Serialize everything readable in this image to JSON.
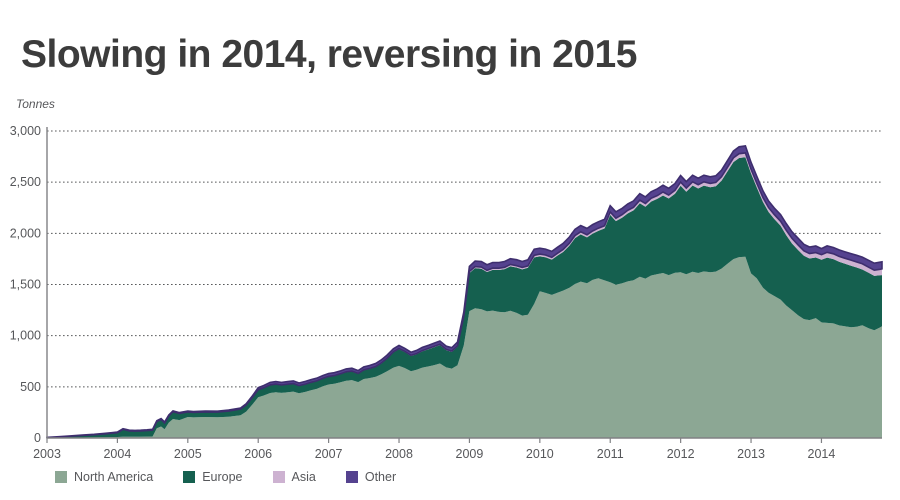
{
  "title": "Slowing in 2014, reversing in 2015",
  "chart_data": {
    "type": "area",
    "stacked": true,
    "title": "Slowing in 2014, reversing in 2015",
    "ylabel": "Tonnes",
    "xlabel": "",
    "ylim": [
      0,
      3000
    ],
    "xlim": [
      2003,
      2014.86
    ],
    "grid": "dotted horizontal",
    "legend_position": "bottom-left",
    "axis_color": "#808184",
    "grid_color": "#58595b",
    "text_color": "#56575a",
    "y_ticks": [
      {
        "label": "0",
        "value": 0
      },
      {
        "label": "500",
        "value": 500
      },
      {
        "label": "1,000",
        "value": 1000
      },
      {
        "label": "1,500",
        "value": 1500
      },
      {
        "label": "2,000",
        "value": 2000
      },
      {
        "label": "2,500",
        "value": 2500
      },
      {
        "label": "3,000",
        "value": 3000
      }
    ],
    "x_ticks": [
      {
        "label": "2003",
        "value": 2003
      },
      {
        "label": "2004",
        "value": 2004
      },
      {
        "label": "2005",
        "value": 2005
      },
      {
        "label": "2006",
        "value": 2006
      },
      {
        "label": "2007",
        "value": 2007
      },
      {
        "label": "2008",
        "value": 2008
      },
      {
        "label": "2009",
        "value": 2009
      },
      {
        "label": "2010",
        "value": 2010
      },
      {
        "label": "2011",
        "value": 2011
      },
      {
        "label": "2012",
        "value": 2012
      },
      {
        "label": "2013",
        "value": 2013
      },
      {
        "label": "2014",
        "value": 2014
      }
    ],
    "x": [
      2003.0,
      2003.17,
      2003.33,
      2003.5,
      2003.67,
      2003.83,
      2003.92,
      2004.0,
      2004.08,
      2004.17,
      2004.25,
      2004.33,
      2004.42,
      2004.5,
      2004.56,
      2004.62,
      2004.67,
      2004.73,
      2004.79,
      2004.88,
      2005.0,
      2005.08,
      2005.25,
      2005.42,
      2005.58,
      2005.75,
      2005.83,
      2005.92,
      2006.0,
      2006.08,
      2006.17,
      2006.25,
      2006.33,
      2006.42,
      2006.5,
      2006.58,
      2006.67,
      2006.75,
      2006.83,
      2006.92,
      2007.0,
      2007.08,
      2007.17,
      2007.25,
      2007.33,
      2007.42,
      2007.5,
      2007.58,
      2007.67,
      2007.75,
      2007.83,
      2007.92,
      2008.0,
      2008.08,
      2008.17,
      2008.25,
      2008.33,
      2008.42,
      2008.5,
      2008.58,
      2008.67,
      2008.75,
      2008.83,
      2008.92,
      2009.0,
      2009.08,
      2009.17,
      2009.25,
      2009.33,
      2009.42,
      2009.5,
      2009.58,
      2009.67,
      2009.75,
      2009.83,
      2009.92,
      2010.0,
      2010.08,
      2010.17,
      2010.25,
      2010.33,
      2010.42,
      2010.5,
      2010.58,
      2010.67,
      2010.75,
      2010.83,
      2010.92,
      2011.0,
      2011.08,
      2011.17,
      2011.25,
      2011.33,
      2011.42,
      2011.5,
      2011.58,
      2011.67,
      2011.75,
      2011.83,
      2011.92,
      2012.0,
      2012.08,
      2012.17,
      2012.25,
      2012.33,
      2012.42,
      2012.5,
      2012.58,
      2012.67,
      2012.75,
      2012.83,
      2012.92,
      2013.0,
      2013.08,
      2013.17,
      2013.25,
      2013.33,
      2013.42,
      2013.5,
      2013.58,
      2013.67,
      2013.75,
      2013.83,
      2013.92,
      2014.0,
      2014.08,
      2014.17,
      2014.25,
      2014.33,
      2014.42,
      2014.5,
      2014.58,
      2014.67,
      2014.75,
      2014.83,
      2014.86
    ],
    "series": [
      {
        "name": "North America",
        "color": "#8CA794",
        "values": [
          2,
          3,
          4,
          5,
          6,
          8,
          9,
          10,
          12,
          12,
          13,
          13,
          14,
          15,
          95,
          112,
          86,
          150,
          186,
          175,
          205,
          201,
          205,
          202,
          208,
          222,
          258,
          330,
          398,
          415,
          440,
          448,
          441,
          448,
          453,
          437,
          450,
          466,
          480,
          505,
          523,
          530,
          545,
          560,
          566,
          546,
          577,
          585,
          598,
          622,
          652,
          688,
          705,
          684,
          653,
          666,
          688,
          700,
          712,
          728,
          690,
          678,
          710,
          905,
          1240,
          1268,
          1258,
          1237,
          1245,
          1232,
          1228,
          1243,
          1222,
          1196,
          1205,
          1310,
          1435,
          1418,
          1398,
          1420,
          1440,
          1468,
          1505,
          1528,
          1512,
          1545,
          1562,
          1540,
          1522,
          1498,
          1512,
          1530,
          1542,
          1575,
          1558,
          1588,
          1602,
          1612,
          1592,
          1614,
          1620,
          1600,
          1625,
          1612,
          1628,
          1620,
          1626,
          1655,
          1705,
          1748,
          1768,
          1772,
          1608,
          1562,
          1468,
          1420,
          1388,
          1352,
          1295,
          1250,
          1198,
          1162,
          1152,
          1172,
          1130,
          1125,
          1120,
          1100,
          1092,
          1082,
          1088,
          1102,
          1072,
          1052,
          1080,
          1092
        ]
      },
      {
        "name": "Europe",
        "color": "#15604F",
        "values": [
          3,
          8,
          14,
          20,
          26,
          33,
          38,
          42,
          72,
          57,
          54,
          56,
          58,
          62,
          66,
          70,
          62,
          66,
          70,
          64,
          48,
          47,
          48,
          50,
          54,
          60,
          63,
          68,
          72,
          74,
          76,
          76,
          74,
          75,
          76,
          72,
          73,
          74,
          74,
          75,
          75,
          76,
          79,
          82,
          83,
          80,
          84,
          89,
          96,
          106,
          122,
          148,
          163,
          156,
          148,
          152,
          158,
          168,
          175,
          180,
          168,
          163,
          182,
          272,
          372,
          392,
          396,
          385,
          398,
          410,
          422,
          434,
          444,
          452,
          458,
          455,
          340,
          348,
          345,
          362,
          378,
          412,
          448,
          462,
          448,
          452,
          462,
          508,
          658,
          622,
          642,
          665,
          682,
          718,
          702,
          722,
          735,
          758,
          748,
          772,
          845,
          806,
          842,
          826,
          838,
          830,
          834,
          858,
          905,
          948,
          968,
          972,
          978,
          888,
          838,
          788,
          752,
          722,
          688,
          652,
          638,
          618,
          602,
          592,
          612,
          638,
          628,
          622,
          612,
          602,
          578,
          545,
          542,
          532,
          510,
          500
        ]
      },
      {
        "name": "Asia",
        "color": "#CDB2D1",
        "values": [
          0,
          0,
          0,
          0,
          0,
          0,
          0,
          0,
          0,
          0,
          0,
          0,
          0,
          0,
          0,
          0,
          0,
          1,
          1,
          1,
          1,
          1,
          1,
          1,
          1,
          1,
          2,
          2,
          2,
          2,
          3,
          3,
          3,
          3,
          3,
          3,
          4,
          4,
          4,
          4,
          4,
          4,
          4,
          5,
          5,
          5,
          5,
          5,
          5,
          6,
          6,
          6,
          7,
          7,
          7,
          7,
          8,
          8,
          8,
          8,
          8,
          8,
          9,
          11,
          15,
          15,
          16,
          16,
          17,
          17,
          18,
          18,
          18,
          19,
          19,
          20,
          22,
          22,
          22,
          23,
          24,
          24,
          25,
          25,
          26,
          26,
          26,
          27,
          28,
          28,
          29,
          30,
          30,
          31,
          32,
          32,
          33,
          34,
          34,
          35,
          36,
          36,
          37,
          37,
          38,
          38,
          38,
          39,
          40,
          41,
          42,
          42,
          42,
          43,
          43,
          43,
          43,
          44,
          48,
          49,
          49,
          48,
          48,
          48,
          49,
          52,
          52,
          53,
          53,
          54,
          54,
          55,
          55,
          56,
          59,
          60
        ]
      },
      {
        "name": "Other",
        "color": "#55428F",
        "edge": "#3E2E6E",
        "values": [
          1,
          2,
          3,
          4,
          4,
          5,
          5,
          6,
          7,
          7,
          7,
          7,
          8,
          8,
          8,
          8,
          8,
          8,
          8,
          8,
          9,
          9,
          9,
          9,
          10,
          10,
          11,
          14,
          20,
          22,
          24,
          25,
          25,
          25,
          26,
          25,
          26,
          26,
          26,
          27,
          28,
          28,
          28,
          28,
          28,
          28,
          29,
          29,
          30,
          30,
          30,
          30,
          30,
          30,
          30,
          31,
          31,
          31,
          32,
          32,
          32,
          33,
          36,
          42,
          50,
          54,
          55,
          55,
          55,
          56,
          57,
          57,
          58,
          58,
          59,
          60,
          58,
          58,
          58,
          59,
          60,
          60,
          61,
          62,
          62,
          62,
          63,
          63,
          62,
          62,
          62,
          63,
          63,
          64,
          64,
          64,
          65,
          66,
          66,
          66,
          64,
          64,
          64,
          64,
          64,
          64,
          64,
          65,
          66,
          67,
          68,
          68,
          67,
          66,
          66,
          65,
          65,
          65,
          65,
          65,
          66,
          65,
          64,
          64,
          60,
          62,
          62,
          63,
          64,
          64,
          65,
          66,
          67,
          68,
          69,
          70
        ]
      }
    ]
  }
}
